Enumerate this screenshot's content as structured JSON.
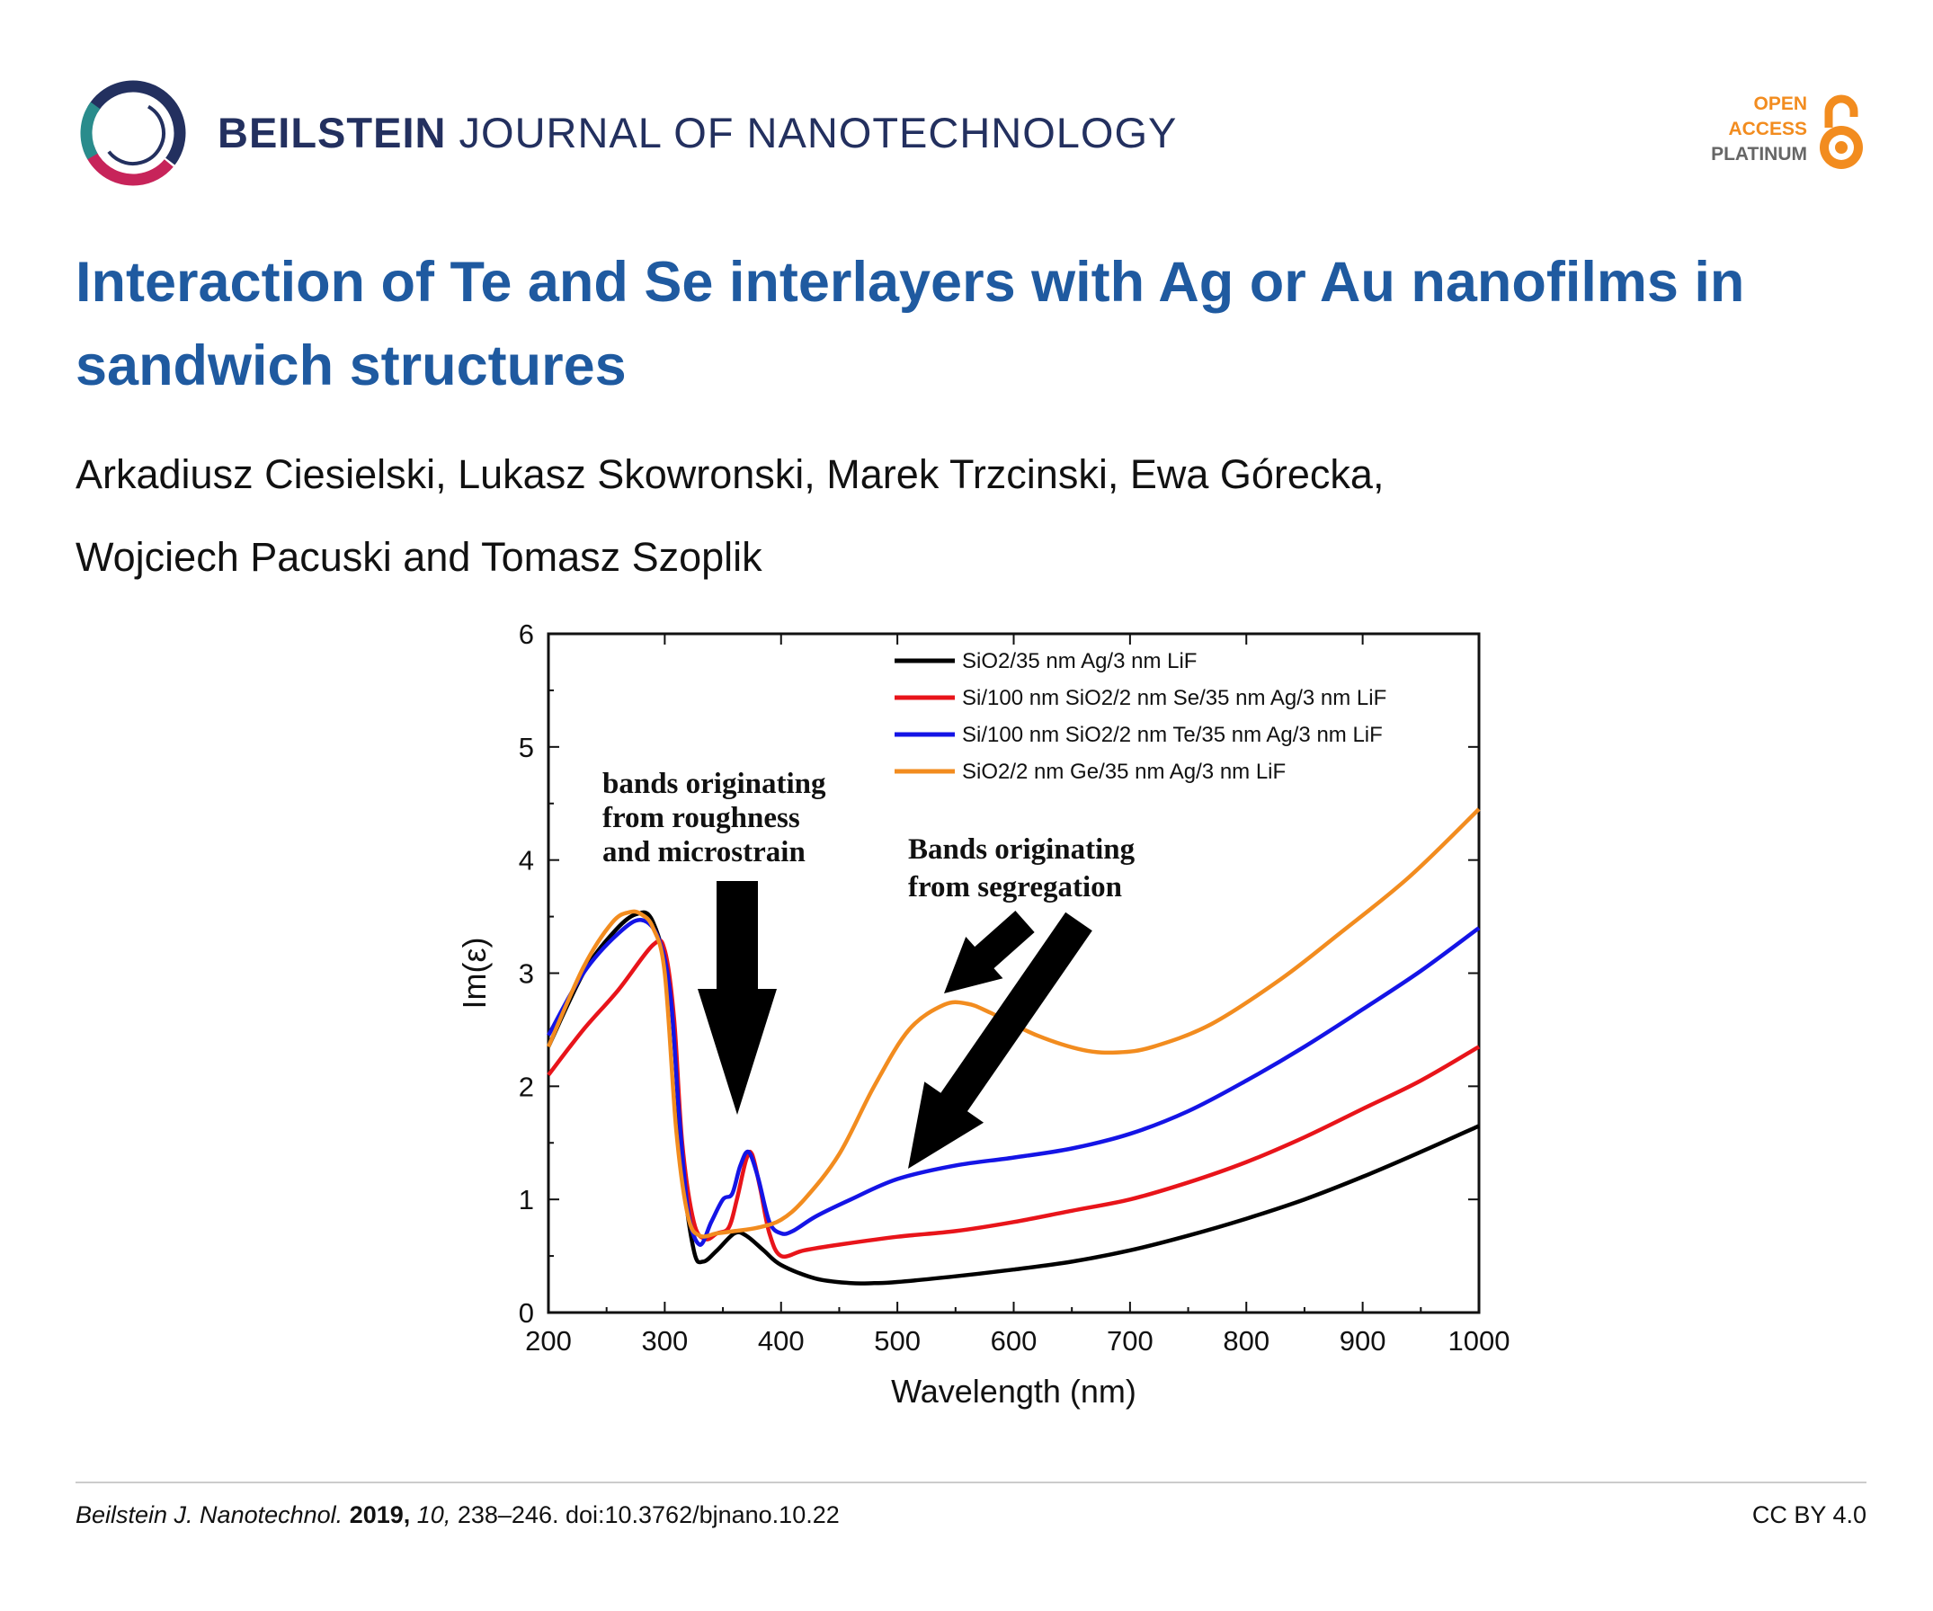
{
  "header": {
    "journal_bold": "BEILSTEIN",
    "journal_rest": "JOURNAL OF NANOTECHNOLOGY",
    "oa_lines": [
      "OPEN",
      "ACCESS",
      "PLATINUM"
    ],
    "colors": {
      "navy": "#23305f",
      "orange": "#f28c1f",
      "grey": "#666666"
    }
  },
  "article": {
    "title_line1": "Interaction of Te and Se interlayers with Ag or Au nanofilms in",
    "title_line2": "sandwich structures",
    "authors_line1": "Arkadiusz Ciesielski, Lukasz Skowronski, Marek Trzcinski, Ewa Górecka,",
    "authors_line2": "Wojciech Pacuski and Tomasz Szoplik"
  },
  "footer": {
    "journal_abbrev": "Beilstein J. Nanotechnol.",
    "year": "2019,",
    "volume": "10,",
    "pages_doi": "238–246. doi:10.3762/bjnano.10.22",
    "license": "CC BY 4.0"
  },
  "chart_data": {
    "type": "line",
    "xlabel": "Wavelength (nm)",
    "ylabel": "Im(ε)",
    "xlim": [
      200,
      1000
    ],
    "ylim": [
      0,
      6
    ],
    "xticks": [
      "200",
      "300",
      "400",
      "500",
      "600",
      "700",
      "800",
      "900",
      "1000"
    ],
    "yticks": [
      "0",
      "1",
      "2",
      "3",
      "4",
      "5",
      "6"
    ],
    "legend_position": "top-right",
    "series": [
      {
        "name": "SiO2/35 nm Ag/3 nm LiF",
        "color": "#000000",
        "x": [
          200,
          230,
          255,
          275,
          290,
          305,
          315,
          325,
          333,
          345,
          360,
          370,
          385,
          400,
          430,
          460,
          480,
          500,
          550,
          600,
          650,
          700,
          750,
          800,
          850,
          900,
          950,
          1000
        ],
        "y": [
          2.35,
          3.0,
          3.35,
          3.52,
          3.45,
          2.8,
          1.3,
          0.55,
          0.45,
          0.55,
          0.7,
          0.68,
          0.55,
          0.42,
          0.3,
          0.26,
          0.26,
          0.27,
          0.32,
          0.38,
          0.45,
          0.55,
          0.68,
          0.83,
          1.0,
          1.2,
          1.42,
          1.65
        ]
      },
      {
        "name": "Si/100 nm SiO2/2 nm Se/35 nm Ag/3 nm LiF",
        "color": "#e8141a",
        "x": [
          200,
          230,
          260,
          290,
          300,
          308,
          315,
          325,
          335,
          345,
          355,
          362,
          370,
          375,
          382,
          390,
          400,
          420,
          450,
          500,
          550,
          600,
          650,
          700,
          750,
          800,
          850,
          900,
          950,
          1000
        ],
        "y": [
          2.1,
          2.5,
          2.85,
          3.25,
          3.2,
          2.6,
          1.5,
          0.8,
          0.65,
          0.7,
          0.75,
          1.0,
          1.35,
          1.4,
          1.1,
          0.7,
          0.5,
          0.55,
          0.6,
          0.67,
          0.72,
          0.8,
          0.9,
          1.0,
          1.15,
          1.33,
          1.55,
          1.8,
          2.05,
          2.35
        ]
      },
      {
        "name": "Si/100 nm SiO2/2 nm Te/35 nm Ag/3 nm LiF",
        "color": "#1414e6",
        "x": [
          200,
          230,
          260,
          280,
          295,
          305,
          312,
          320,
          330,
          340,
          350,
          358,
          365,
          372,
          380,
          390,
          400,
          410,
          430,
          460,
          500,
          550,
          600,
          650,
          700,
          750,
          800,
          850,
          900,
          950,
          1000
        ],
        "y": [
          2.45,
          3.0,
          3.35,
          3.47,
          3.3,
          2.8,
          1.8,
          0.9,
          0.6,
          0.8,
          1.0,
          1.05,
          1.3,
          1.42,
          1.2,
          0.8,
          0.7,
          0.72,
          0.85,
          1.0,
          1.18,
          1.3,
          1.37,
          1.45,
          1.58,
          1.78,
          2.05,
          2.35,
          2.68,
          3.02,
          3.4
        ]
      },
      {
        "name": "SiO2/2 nm Ge/35 nm Ag/3 nm LiF",
        "color": "#f28c1f",
        "x": [
          200,
          230,
          255,
          270,
          280,
          290,
          300,
          310,
          320,
          330,
          345,
          360,
          380,
          400,
          420,
          450,
          480,
          510,
          540,
          560,
          580,
          620,
          660,
          690,
          720,
          770,
          830,
          880,
          940,
          1000
        ],
        "y": [
          2.35,
          3.05,
          3.45,
          3.54,
          3.52,
          3.4,
          3.0,
          1.6,
          0.85,
          0.68,
          0.7,
          0.72,
          0.75,
          0.82,
          1.0,
          1.4,
          2.0,
          2.5,
          2.72,
          2.73,
          2.65,
          2.45,
          2.32,
          2.3,
          2.35,
          2.55,
          2.95,
          3.35,
          3.85,
          4.45
        ]
      }
    ],
    "annotations": [
      {
        "lines": [
          "bands originating",
          "from roughness",
          "and microstrain"
        ]
      },
      {
        "lines": [
          "Bands originating",
          "from segregation"
        ]
      }
    ]
  }
}
